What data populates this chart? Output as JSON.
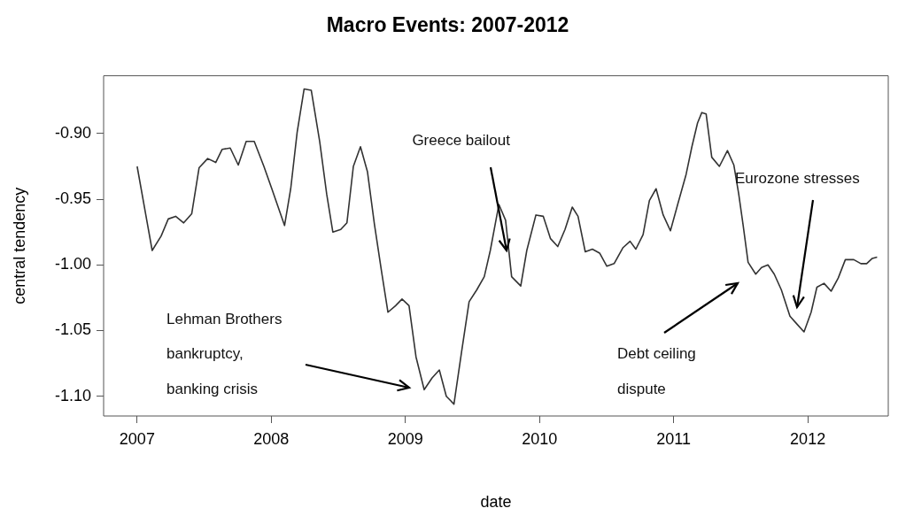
{
  "chart_data": {
    "type": "line",
    "title": "Macro Events: 2007-2012",
    "xlabel": "date",
    "ylabel": "central tendency",
    "x": [
      2007.0,
      2007.112,
      2007.179,
      2007.232,
      2007.287,
      2007.347,
      2007.407,
      2007.462,
      2007.526,
      2007.586,
      2007.634,
      2007.694,
      2007.754,
      2007.813,
      2007.873,
      2007.945,
      2008.004,
      2008.099,
      2008.145,
      2008.193,
      2008.245,
      2008.298,
      2008.361,
      2008.413,
      2008.459,
      2008.518,
      2008.564,
      2008.612,
      2008.665,
      2008.717,
      2008.769,
      2008.822,
      2008.87,
      2008.927,
      2008.975,
      2009.027,
      2009.079,
      2009.14,
      2009.199,
      2009.253,
      2009.305,
      2009.362,
      2009.419,
      2009.475,
      2009.532,
      2009.588,
      2009.633,
      2009.697,
      2009.747,
      2009.792,
      2009.86,
      2009.905,
      2009.973,
      2010.028,
      2010.082,
      2010.136,
      2010.19,
      2010.244,
      2010.287,
      2010.341,
      2010.394,
      2010.448,
      2010.502,
      2010.556,
      2010.621,
      2010.675,
      2010.718,
      2010.772,
      2010.819,
      2010.869,
      2010.922,
      2010.976,
      2011.03,
      2011.093,
      2011.136,
      2011.178,
      2011.21,
      2011.242,
      2011.284,
      2011.341,
      2011.401,
      2011.449,
      2011.485,
      2011.517,
      2011.555,
      2011.612,
      2011.655,
      2011.703,
      2011.75,
      2011.803,
      2011.867,
      2011.919,
      2011.972,
      2012.025,
      2012.068,
      2012.121,
      2012.174,
      2012.227,
      2012.28,
      2012.343,
      2012.396,
      2012.439,
      2012.481,
      2012.517
    ],
    "series": [
      {
        "color": "#333333",
        "values": [
          -0.925,
          -0.989,
          -0.978,
          -0.965,
          -0.963,
          -0.968,
          -0.961,
          -0.926,
          -0.919,
          -0.922,
          -0.912,
          -0.911,
          -0.924,
          -0.906,
          -0.906,
          -0.925,
          -0.942,
          -0.97,
          -0.942,
          -0.899,
          -0.866,
          -0.867,
          -0.906,
          -0.946,
          -0.975,
          -0.973,
          -0.968,
          -0.925,
          -0.91,
          -0.929,
          -0.969,
          -1.005,
          -1.036,
          -1.031,
          -1.026,
          -1.031,
          -1.07,
          -1.095,
          -1.086,
          -1.08,
          -1.1,
          -1.106,
          -1.066,
          -1.028,
          -1.019,
          -1.009,
          -0.989,
          -0.954,
          -0.966,
          -1.009,
          -1.016,
          -0.989,
          -0.962,
          -0.963,
          -0.98,
          -0.986,
          -0.973,
          -0.956,
          -0.963,
          -0.99,
          -0.988,
          -0.991,
          -1.001,
          -0.999,
          -0.987,
          -0.982,
          -0.988,
          -0.977,
          -0.951,
          -0.942,
          -0.962,
          -0.974,
          -0.954,
          -0.931,
          -0.91,
          -0.892,
          -0.884,
          -0.885,
          -0.918,
          -0.925,
          -0.913,
          -0.924,
          -0.946,
          -0.969,
          -0.998,
          -1.007,
          -1.002,
          -1.0,
          -1.007,
          -1.019,
          -1.039,
          -1.045,
          -1.051,
          -1.036,
          -1.017,
          -1.014,
          -1.02,
          -1.01,
          -0.996,
          -0.996,
          -0.999,
          -0.999,
          -0.995,
          -0.994
        ]
      }
    ],
    "xlim": [
      2006.75,
      2012.6
    ],
    "xticks": [
      2007,
      2008,
      2009,
      2010,
      2011,
      2012
    ],
    "ylim": [
      -1.115,
      -0.856
    ],
    "yticks": [
      {
        "value": -1.1,
        "label": "-1.10"
      },
      {
        "value": -1.05,
        "label": "-1.05"
      },
      {
        "value": -1.0,
        "label": "-1.00"
      },
      {
        "value": -0.95,
        "label": "-0.95"
      },
      {
        "value": -0.9,
        "label": "-0.90"
      }
    ],
    "annotations": [
      "Lehman Brothers",
      "bankruptcy,",
      "banking crisis",
      {
        "text": "Greece bailout",
        "x": 2009.77,
        "y": -0.987
      },
      "Debt ceiling",
      "dispute",
      "Eurozone stresses"
    ],
    "grid": false,
    "legend": false,
    "marker": "none",
    "line_style": "solid"
  }
}
